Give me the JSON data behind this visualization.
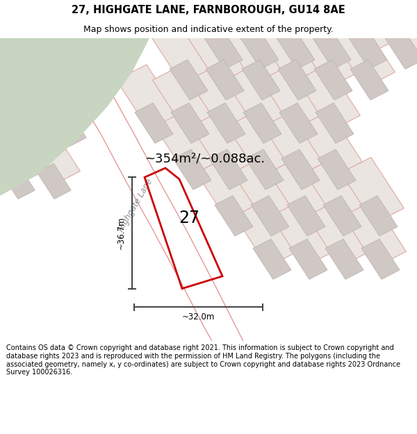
{
  "title": "27, HIGHGATE LANE, FARNBOROUGH, GU14 8AE",
  "subtitle": "Map shows position and indicative extent of the property.",
  "area_label": "~354m²/~0.088ac.",
  "number_label": "27",
  "dim_horiz": "~32.0m",
  "dim_vert": "~36.7m",
  "road_label": "Highgate Lane",
  "footer": "Contains OS data © Crown copyright and database right 2021. This information is subject to Crown copyright and database rights 2023 and is reproduced with the permission of HM Land Registry. The polygons (including the associated geometry, namely x, y co-ordinates) are subject to Crown copyright and database rights 2023 Ordnance Survey 100026316.",
  "map_bg": "#f8f5f2",
  "green_color": "#c8d5c0",
  "plot_fill": "#eae5e0",
  "plot_outline": "#e0a8a0",
  "building_fill": "#d0c8c4",
  "building_outline": "#c0b8b4",
  "road_fill": "#f8f5f2",
  "property_color": "#cc0000",
  "dim_color": "#404040",
  "label_color": "#000000",
  "road_text_color": "#909090",
  "title_color": "#000000",
  "footer_color": "#000000",
  "title_fontsize": 10.5,
  "subtitle_fontsize": 9,
  "area_fontsize": 13,
  "number_fontsize": 17,
  "road_fontsize": 8.5,
  "dim_fontsize": 8.5,
  "footer_fontsize": 7.0
}
